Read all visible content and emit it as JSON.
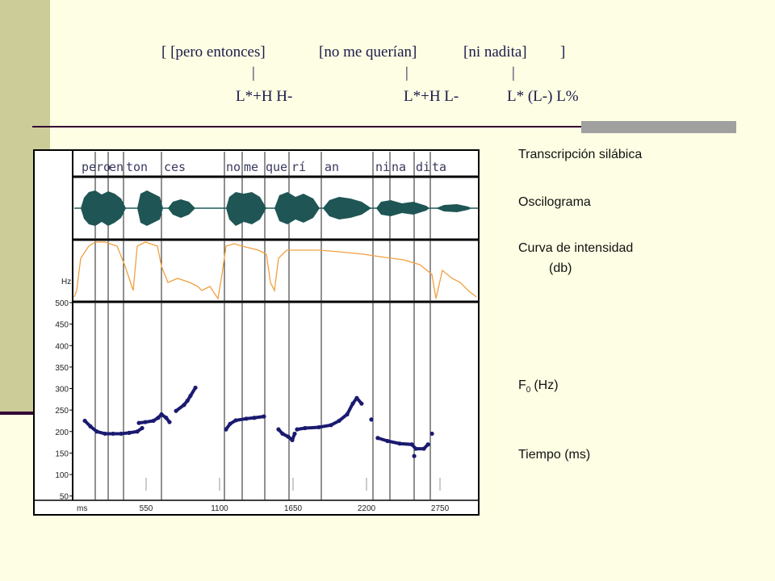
{
  "title_phrases": [
    "[ [pero entonces]",
    "[no me querían]",
    "[ni nadita]",
    "]"
  ],
  "tone_links": [
    "|",
    "|",
    "|"
  ],
  "tone_labels": [
    "L*+H H-",
    "L*+H L-",
    "L* (L-) L%"
  ],
  "figure": {
    "syllables": [
      "pe",
      "ro",
      "en",
      "ton",
      "ces",
      "no",
      "me",
      "que",
      "rí",
      "an",
      "ni",
      "na",
      "di",
      "ta"
    ],
    "f0_axis_label": "Hz",
    "ylim": [
      40,
      500
    ],
    "yticks": [
      50,
      100,
      150,
      200,
      250,
      300,
      350,
      400,
      450,
      500
    ],
    "time_axis_label": "ms",
    "xlim": [
      0,
      3040
    ],
    "xticks": [
      550,
      1100,
      1650,
      2200,
      2750
    ],
    "f0_segments": [
      {
        "ms": [
          91,
          133,
          181,
          242,
          302,
          363,
          423,
          484,
          520
        ],
        "hz": [
          225,
          212,
          200,
          195,
          195,
          195,
          197,
          200,
          208
        ]
      },
      {
        "ms": [
          496,
          544,
          605,
          640,
          665,
          700,
          725
        ],
        "hz": [
          220,
          222,
          225,
          232,
          240,
          232,
          222
        ]
      },
      {
        "ms": [
          774,
          834,
          860,
          882,
          919
        ],
        "hz": [
          248,
          262,
          272,
          283,
          302
        ]
      },
      {
        "ms": [
          1148,
          1179,
          1221,
          1300,
          1360,
          1432
        ],
        "hz": [
          205,
          218,
          226,
          230,
          232,
          235
        ]
      },
      {
        "ms": [
          1541,
          1571,
          1614,
          1644,
          1662
        ],
        "hz": [
          205,
          195,
          188,
          180,
          195
        ]
      },
      {
        "ms": [
          1680,
          1740,
          1843,
          1934,
          1995,
          2055,
          2097,
          2127,
          2163
        ],
        "hz": [
          205,
          208,
          210,
          215,
          225,
          240,
          265,
          278,
          265
        ]
      },
      {
        "ms": [
          2236
        ],
        "hz": [
          228
        ]
      },
      {
        "ms": [
          2284,
          2357,
          2448,
          2539,
          2569,
          2629,
          2660
        ],
        "hz": [
          185,
          178,
          172,
          170,
          160,
          160,
          170
        ]
      },
      {
        "ms": [
          2557
        ],
        "hz": [
          143
        ]
      },
      {
        "ms": [
          2690
        ],
        "hz": [
          195
        ]
      }
    ]
  },
  "legend": {
    "syllables": "Transcripción silábica",
    "waveform": "Oscilograma",
    "intensity": "Curva de intensidad",
    "intensity_unit": "(db)",
    "f0_symbol": "F",
    "f0_subscript": "0",
    "f0_unit": "(Hz)",
    "time": "Tiempo (ms)"
  }
}
